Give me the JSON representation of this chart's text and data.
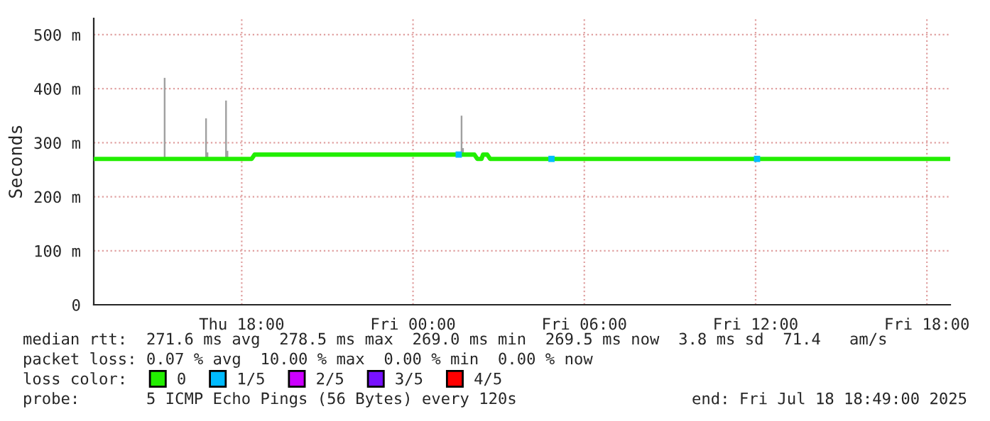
{
  "chart_data": {
    "type": "line",
    "ylabel": "Seconds",
    "legend_title": "loss color:",
    "xlim": [
      "2025-07-17T12:49",
      "2025-07-18T18:49"
    ],
    "xticks": [
      {
        "value": "2025-07-17T18:00",
        "label": "Thu 18:00"
      },
      {
        "value": "2025-07-18T00:00",
        "label": "Fri 00:00"
      },
      {
        "value": "2025-07-18T06:00",
        "label": "Fri 06:00"
      },
      {
        "value": "2025-07-18T12:00",
        "label": "Fri 12:00"
      },
      {
        "value": "2025-07-18T18:00",
        "label": "Fri 18:00"
      }
    ],
    "ylim": [
      0,
      530
    ],
    "yticks": [
      0,
      {
        "value": 100,
        "label": "100 m"
      },
      {
        "value": 200,
        "label": "200 m"
      },
      {
        "value": 300,
        "label": "300 m"
      },
      {
        "value": 400,
        "label": "400 m"
      },
      {
        "value": 500,
        "label": "500 m"
      }
    ],
    "grid": true,
    "legend": "bottom left",
    "series": [
      {
        "type": "bar",
        "color": "#a0a0a0",
        "x": [
          "2025-07-17T15:18",
          "2025-07-17T16:45",
          "2025-07-17T16:48",
          "2025-07-17T17:27",
          "2025-07-17T17:30",
          "2025-07-18T01:42",
          "2025-07-18T01:45"
        ],
        "base": [
          270,
          270,
          270,
          270,
          270,
          278,
          278
        ],
        "values": [
          150,
          75,
          12,
          108,
          15,
          72,
          12
        ]
      },
      {
        "name": "0",
        "color": "#22ee00",
        "x": [
          "2025-07-17T12:49",
          "2025-07-17T18:21",
          "2025-07-17T18:27",
          "2025-07-18T02:09",
          "2025-07-18T02:15",
          "2025-07-18T02:24",
          "2025-07-18T02:27",
          "2025-07-18T02:36",
          "2025-07-18T02:42",
          "2025-07-18T18:49"
        ],
        "values": [
          270,
          270,
          278,
          278,
          270,
          270,
          278,
          278,
          270,
          270
        ]
      },
      {
        "type": "scatter",
        "name": "1/5",
        "color": "#00bbff",
        "marker": "square",
        "x": [
          "2025-07-18T01:36",
          "2025-07-18T04:51",
          "2025-07-18T12:03"
        ],
        "values": [
          278,
          270,
          270
        ]
      },
      {
        "type": "scatter",
        "name": "2/5",
        "color": "#cc00ff",
        "marker": "square"
      },
      {
        "type": "scatter",
        "name": "3/5",
        "color": "#7711ff",
        "marker": "square"
      },
      {
        "type": "scatter",
        "name": "4/5",
        "color": "#ff0000",
        "marker": "square"
      }
    ],
    "annotations": [
      "median rtt:  271.6 ms avg  278.5 ms max  269.0 ms min  269.5 ms now  3.8 ms sd  71.4   am/s",
      "packet loss: 0.07 % avg  10.00 % max  0.00 % min  0.00 % now",
      "probe:       5 ICMP Echo Pings (56 Bytes) every 120s",
      "end: Fri Jul 18 18:49:00 2025"
    ]
  }
}
